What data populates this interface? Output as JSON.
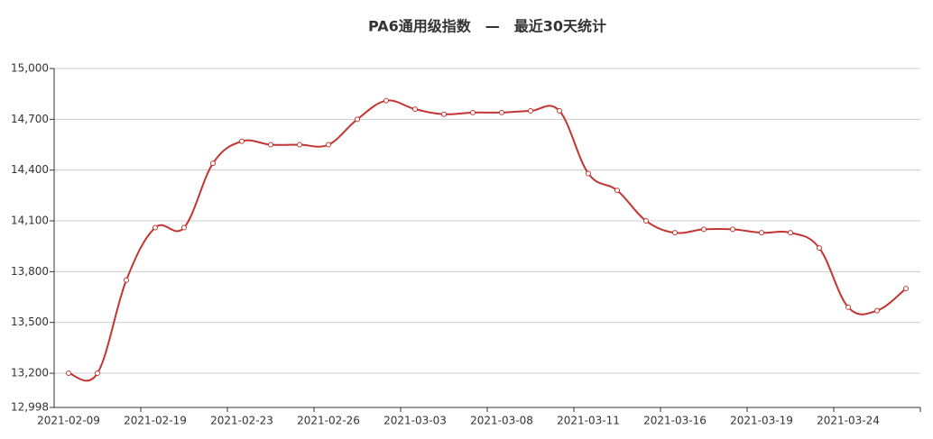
{
  "chart_data": {
    "type": "line",
    "title": "PA6通用级指数　—　最近30天统计",
    "categories": [
      "2021-02-09",
      null,
      null,
      "2021-02-19",
      null,
      null,
      "2021-02-23",
      null,
      null,
      "2021-02-26",
      null,
      null,
      "2021-03-03",
      null,
      null,
      "2021-03-08",
      null,
      null,
      "2021-03-11",
      null,
      null,
      "2021-03-16",
      null,
      null,
      "2021-03-19",
      null,
      null,
      "2021-03-24",
      null,
      null
    ],
    "series": [
      {
        "name": "PA6通用级指数",
        "color": "#c23531",
        "values": [
          13200,
          13200,
          13750,
          14060,
          14060,
          14440,
          14570,
          14550,
          14550,
          14550,
          14700,
          14810,
          14760,
          14730,
          14740,
          14740,
          14750,
          14750,
          14380,
          14280,
          14100,
          14030,
          14050,
          14050,
          14030,
          14030,
          13940,
          13590,
          13570,
          13700
        ]
      }
    ],
    "ylim": [
      12998,
      15000
    ],
    "yticks": [
      {
        "value": 12998,
        "label": "12,998"
      },
      {
        "value": 13200,
        "label": "13,200"
      },
      {
        "value": 13500,
        "label": "13,500"
      },
      {
        "value": 13800,
        "label": "13,800"
      },
      {
        "value": 14100,
        "label": "14,100"
      },
      {
        "value": 14400,
        "label": "14,400"
      },
      {
        "value": 14700,
        "label": "14,700"
      },
      {
        "value": 15000,
        "label": "15,000"
      }
    ],
    "grid": true,
    "smooth": true
  }
}
